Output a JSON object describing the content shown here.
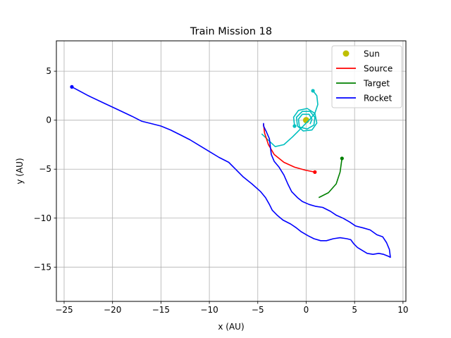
{
  "chart_data": {
    "type": "line",
    "title": "Train Mission 18",
    "xlabel": "x (AU)",
    "ylabel": "y (AU)",
    "xlim": [
      -25.8,
      10.3
    ],
    "ylim": [
      -18.5,
      8.1
    ],
    "xticks": [
      -25,
      -20,
      -15,
      -10,
      -5,
      0,
      5,
      10
    ],
    "yticks": [
      5,
      0,
      -5,
      -10,
      -15
    ],
    "xtick_labels": [
      "−25",
      "−20",
      "−15",
      "−10",
      "−5",
      "0",
      "5",
      "10"
    ],
    "ytick_labels": [
      "5",
      "0",
      "−5",
      "−10",
      "−15"
    ],
    "grid": true,
    "legend_position": "top-right",
    "legend": [
      {
        "name": "Sun",
        "color": "#bfbf00",
        "marker": "dot"
      },
      {
        "name": "Source",
        "color": "#ff0000",
        "marker": "line"
      },
      {
        "name": "Target",
        "color": "#008000",
        "marker": "line"
      },
      {
        "name": "Rocket",
        "color": "#0000ff",
        "marker": "line"
      }
    ],
    "series": [
      {
        "name": "Sun",
        "color": "#bfbf00",
        "points": [
          [
            0,
            0
          ]
        ]
      },
      {
        "name": "",
        "color": "#00bfbf",
        "points": [
          [
            0.7,
            3.0
          ],
          [
            1.1,
            2.5
          ],
          [
            1.2,
            1.6
          ],
          [
            0.9,
            0.7
          ],
          [
            0.4,
            0.1
          ],
          [
            -0.2,
            -0.5
          ],
          [
            -0.9,
            -1.2
          ],
          [
            -1.4,
            -1.7
          ],
          [
            -2.3,
            -2.5
          ],
          [
            -3.2,
            -2.7
          ],
          [
            -4.6,
            -1.4
          ]
        ],
        "end": "start"
      },
      {
        "name": "",
        "color": "#00bfbf",
        "points": [
          [
            -1.2,
            -0.6
          ],
          [
            -1.3,
            0.3
          ],
          [
            -0.8,
            1.0
          ],
          [
            0.1,
            1.2
          ],
          [
            0.9,
            0.7
          ],
          [
            1.1,
            -0.3
          ],
          [
            0.6,
            -1.0
          ],
          [
            -0.3,
            -1.1
          ],
          [
            -0.9,
            -0.6
          ],
          [
            -1.0,
            0.3
          ],
          [
            -0.4,
            0.9
          ],
          [
            0.4,
            0.9
          ],
          [
            0.9,
            0.3
          ],
          [
            0.8,
            -0.5
          ],
          [
            0.1,
            -0.9
          ],
          [
            -0.7,
            -0.7
          ],
          [
            -0.8,
            0.1
          ],
          [
            -0.4,
            0.6
          ],
          [
            0.3,
            0.6
          ],
          [
            0.6,
            0.1
          ],
          [
            0.4,
            -0.4
          ]
        ],
        "end": "start"
      },
      {
        "name": "Source",
        "color": "#ff0000",
        "points": [
          [
            -4.4,
            -0.4
          ],
          [
            -4.3,
            -1.3
          ],
          [
            -3.9,
            -2.5
          ],
          [
            -3.3,
            -3.5
          ],
          [
            -2.3,
            -4.3
          ],
          [
            -1.2,
            -4.8
          ],
          [
            -0.1,
            -5.1
          ],
          [
            0.9,
            -5.3
          ]
        ],
        "end": "end"
      },
      {
        "name": "Target",
        "color": "#008000",
        "points": [
          [
            1.3,
            -7.9
          ],
          [
            2.3,
            -7.4
          ],
          [
            3.1,
            -6.5
          ],
          [
            3.5,
            -5.3
          ],
          [
            3.7,
            -3.9
          ]
        ],
        "end": "end"
      },
      {
        "name": "Rocket",
        "color": "#0000ff",
        "points": [
          [
            -24.2,
            3.4
          ],
          [
            -22.5,
            2.5
          ],
          [
            -20.8,
            1.7
          ],
          [
            -19.5,
            1.1
          ],
          [
            -18.0,
            0.4
          ],
          [
            -17.0,
            -0.1
          ],
          [
            -16.0,
            -0.35
          ],
          [
            -15.0,
            -0.6
          ],
          [
            -14.0,
            -1.0
          ],
          [
            -13.0,
            -1.5
          ],
          [
            -12.0,
            -2.0
          ],
          [
            -11.0,
            -2.6
          ],
          [
            -10.0,
            -3.2
          ],
          [
            -9.0,
            -3.8
          ],
          [
            -8.0,
            -4.3
          ],
          [
            -7.3,
            -5.0
          ],
          [
            -6.5,
            -5.8
          ],
          [
            -5.6,
            -6.5
          ],
          [
            -4.7,
            -7.3
          ],
          [
            -4.2,
            -7.9
          ],
          [
            -3.8,
            -8.6
          ],
          [
            -3.5,
            -9.2
          ],
          [
            -3.0,
            -9.7
          ],
          [
            -2.4,
            -10.2
          ],
          [
            -1.6,
            -10.6
          ],
          [
            -1.0,
            -11.0
          ],
          [
            -0.5,
            -11.4
          ],
          [
            0.2,
            -11.8
          ],
          [
            0.8,
            -12.1
          ],
          [
            1.5,
            -12.3
          ],
          [
            2.1,
            -12.3
          ],
          [
            2.8,
            -12.1
          ],
          [
            3.5,
            -12.0
          ],
          [
            4.2,
            -12.1
          ],
          [
            4.6,
            -12.2
          ],
          [
            4.9,
            -12.6
          ],
          [
            5.3,
            -13.0
          ],
          [
            5.8,
            -13.3
          ],
          [
            6.3,
            -13.6
          ],
          [
            6.9,
            -13.7
          ],
          [
            7.5,
            -13.6
          ],
          [
            8.0,
            -13.7
          ],
          [
            8.5,
            -13.9
          ],
          [
            8.7,
            -14.0
          ],
          [
            8.6,
            -13.2
          ],
          [
            8.3,
            -12.5
          ],
          [
            7.9,
            -11.9
          ],
          [
            7.3,
            -11.7
          ],
          [
            6.6,
            -11.2
          ],
          [
            5.9,
            -11.0
          ],
          [
            5.1,
            -10.8
          ],
          [
            4.5,
            -10.4
          ],
          [
            3.8,
            -10.0
          ],
          [
            3.1,
            -9.7
          ],
          [
            2.5,
            -9.3
          ],
          [
            1.7,
            -8.9
          ],
          [
            1.0,
            -8.8
          ],
          [
            0.3,
            -8.6
          ],
          [
            -0.4,
            -8.3
          ],
          [
            -0.9,
            -7.9
          ],
          [
            -1.5,
            -7.3
          ],
          [
            -1.9,
            -6.5
          ],
          [
            -2.3,
            -5.6
          ],
          [
            -2.8,
            -4.8
          ],
          [
            -3.3,
            -4.2
          ],
          [
            -3.6,
            -3.5
          ],
          [
            -3.7,
            -2.7
          ],
          [
            -3.8,
            -1.9
          ],
          [
            -4.1,
            -1.2
          ],
          [
            -4.4,
            -0.6
          ],
          [
            -4.4,
            -0.3
          ]
        ],
        "end": "start"
      }
    ]
  }
}
